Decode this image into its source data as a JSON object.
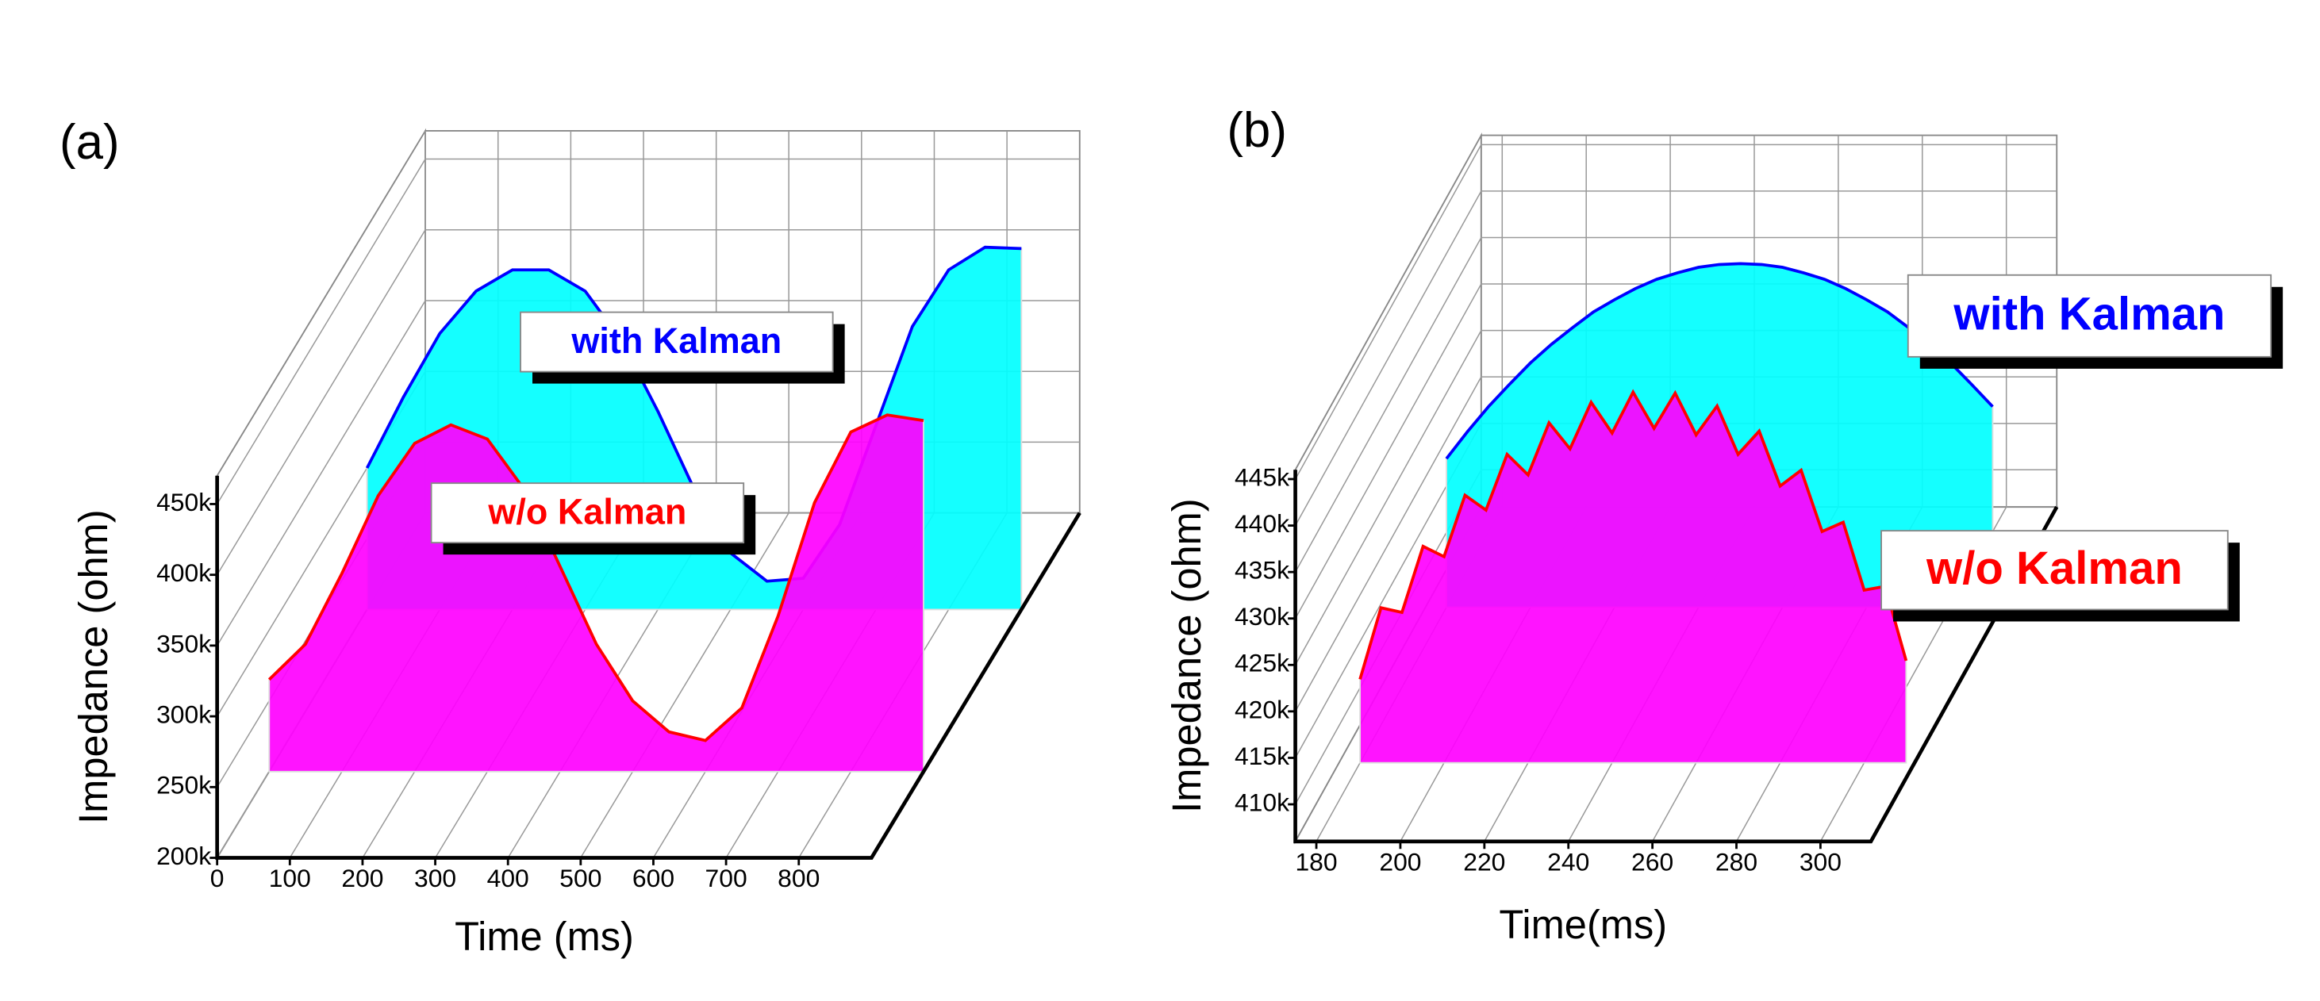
{
  "chart_data": [
    {
      "type": "area",
      "panel_label": "(a)",
      "xlabel": "Time (ms)",
      "ylabel": "Impedance (ohm)",
      "x": [
        0,
        50,
        100,
        150,
        200,
        250,
        300,
        350,
        400,
        450,
        500,
        550,
        600,
        650,
        700,
        750,
        800,
        850,
        900
      ],
      "xlim": [
        0,
        900
      ],
      "xticks": [
        0,
        100,
        200,
        300,
        400,
        500,
        600,
        700,
        800
      ],
      "ylim": [
        200000,
        470000
      ],
      "yticks": [
        {
          "value": 200000,
          "label": "200k"
        },
        {
          "value": 250000,
          "label": "250k"
        },
        {
          "value": 300000,
          "label": "300k"
        },
        {
          "value": 350000,
          "label": "350k"
        },
        {
          "value": 400000,
          "label": "400k"
        },
        {
          "value": 450000,
          "label": "450k"
        }
      ],
      "grid": true,
      "series": [
        {
          "name": "with Kalman",
          "color": "#00ffff",
          "line_color": "#0000ff",
          "values": [
            300000,
            350000,
            395000,
            425000,
            440000,
            440000,
            425000,
            390000,
            340000,
            285000,
            240000,
            220000,
            222000,
            260000,
            330000,
            400000,
            440000,
            456000,
            455000
          ]
        },
        {
          "name": "w/o Kalman",
          "color": "#ff00ff",
          "line_color": "#ff0000",
          "values": [
            265000,
            290000,
            340000,
            395000,
            432000,
            445000,
            435000,
            400000,
            345000,
            290000,
            250000,
            228000,
            222000,
            245000,
            310000,
            390000,
            440000,
            452000,
            448000
          ]
        }
      ]
    },
    {
      "type": "area",
      "panel_label": "(b)",
      "xlabel": "Time(ms)",
      "ylabel": "Impedance (ohm)",
      "x": [
        180,
        185,
        190,
        195,
        200,
        205,
        210,
        215,
        220,
        225,
        230,
        235,
        240,
        245,
        250,
        255,
        260,
        265,
        270,
        275,
        280,
        285,
        290,
        295,
        300,
        305,
        310
      ],
      "xlim": [
        175,
        312
      ],
      "xticks": [
        180,
        200,
        220,
        240,
        260,
        280,
        300
      ],
      "ylim": [
        406000,
        446000
      ],
      "yticks": [
        {
          "value": 410000,
          "label": "410k"
        },
        {
          "value": 415000,
          "label": "415k"
        },
        {
          "value": 420000,
          "label": "420k"
        },
        {
          "value": 425000,
          "label": "425k"
        },
        {
          "value": 430000,
          "label": "430k"
        },
        {
          "value": 435000,
          "label": "435k"
        },
        {
          "value": 440000,
          "label": "440k"
        },
        {
          "value": 445000,
          "label": "445k"
        }
      ],
      "grid": true,
      "series": [
        {
          "name": "with Kalman",
          "color": "#00ffff",
          "line_color": "#0000ff",
          "values": [
            422000,
            424900,
            427600,
            430000,
            432300,
            434300,
            436100,
            437800,
            439100,
            440300,
            441300,
            442000,
            442600,
            442900,
            443000,
            442900,
            442600,
            442000,
            441300,
            440300,
            439100,
            437800,
            436100,
            434300,
            432300,
            430000,
            427600
          ]
        },
        {
          "name": "w/o Kalman",
          "color": "#ff00ff",
          "line_color": "#ff0000",
          "values": [
            415000,
            422700,
            422200,
            429300,
            428200,
            434800,
            433200,
            439200,
            437000,
            442600,
            439800,
            444800,
            441500,
            445900,
            442000,
            445800,
            441300,
            444400,
            439200,
            441700,
            435800,
            437500,
            430900,
            431900,
            424600,
            425000,
            417000
          ]
        }
      ]
    }
  ]
}
